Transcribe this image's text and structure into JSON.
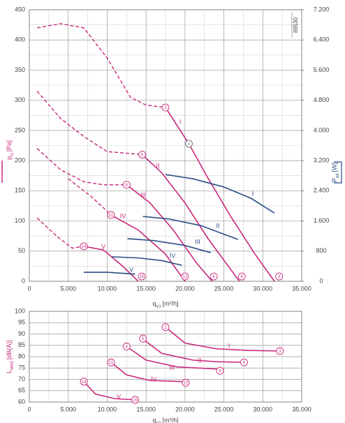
{
  "chart_data": [
    {
      "type": "line",
      "code": "86530",
      "xlabel": {
        "symbol": "q",
        "sub": "V1",
        "unit": "[m³/h]"
      },
      "ylabel": {
        "symbol": "p",
        "sub": "fs",
        "unit": "[Pa]"
      },
      "y2label": {
        "symbol": "P",
        "sub": "ed",
        "unit": "[W]"
      },
      "xlim": [
        0,
        35000
      ],
      "xticks": [
        0,
        {
          "value": 5000,
          "label": "5.000"
        },
        {
          "value": 10000,
          "label": "10.000"
        },
        {
          "value": 15000,
          "label": "15.000"
        },
        {
          "value": 20000,
          "label": "20.000"
        },
        {
          "value": 25000,
          "label": "25.000"
        },
        {
          "value": 30000,
          "label": "30.000"
        },
        {
          "value": 35000,
          "label": "35.000"
        }
      ],
      "xminor": [
        2500,
        7500,
        12500,
        17500,
        22500,
        27500,
        32500
      ],
      "ylim": [
        0,
        450
      ],
      "yticks": [
        0,
        50,
        100,
        150,
        200,
        250,
        300,
        350,
        400,
        450
      ],
      "yminor": [
        25,
        75,
        125,
        175,
        225,
        275,
        325,
        375,
        425
      ],
      "y2lim": [
        0,
        7200
      ],
      "y2ticks": [
        0,
        800,
        {
          "value": 1600,
          "label": "1.600"
        },
        {
          "value": 2400,
          "label": "2.400"
        },
        {
          "value": 3200,
          "label": "3.200"
        },
        {
          "value": 4000,
          "label": "4.000"
        },
        {
          "value": 4800,
          "label": "4.800"
        },
        {
          "value": 5600,
          "label": "5.600"
        },
        {
          "value": 6400,
          "label": "6.400"
        },
        {
          "value": 7200,
          "label": "7.200"
        }
      ],
      "grid": true,
      "series": [
        {
          "name": "I",
          "color": "#c8287c",
          "x": [
            17500,
            20500,
            23000,
            26000,
            29000,
            31500
          ],
          "values": [
            288,
            228,
            170,
            105,
            45,
            0
          ],
          "stall": {
            "x": [
              1000,
              4000,
              7000,
              10000,
              13000,
              15000,
              17500
            ],
            "values": [
              420,
              427,
              420,
              370,
              305,
              292,
              288
            ]
          }
        },
        {
          "name": "II",
          "color": "#c8287c",
          "x": [
            14500,
            17000,
            20000,
            23000,
            27000
          ],
          "values": [
            210,
            180,
            130,
            70,
            0
          ],
          "stall": {
            "x": [
              1000,
              4000,
              7000,
              10000,
              14500
            ],
            "values": [
              315,
              270,
              240,
              215,
              210
            ]
          }
        },
        {
          "name": "III",
          "color": "#c8287c",
          "x": [
            12500,
            15500,
            18500,
            21500,
            23500
          ],
          "values": [
            160,
            130,
            85,
            30,
            0
          ],
          "stall": {
            "x": [
              1000,
              4000,
              7000,
              9500,
              12500
            ],
            "values": [
              220,
              185,
              165,
              160,
              160
            ]
          }
        },
        {
          "name": "IV",
          "color": "#c8287c",
          "x": [
            10500,
            14000,
            17500,
            20000
          ],
          "values": [
            110,
            85,
            45,
            0
          ],
          "stall": {
            "x": [
              5000,
              8000,
              10500
            ],
            "values": [
              170,
              140,
              110
            ]
          }
        },
        {
          "name": "V",
          "color": "#c8287c",
          "x": [
            7000,
            9500,
            12000,
            14000
          ],
          "values": [
            58,
            52,
            25,
            0
          ],
          "stall": {
            "x": [
              1000,
              3500,
              5500,
              7000
            ],
            "values": [
              105,
              75,
              55,
              58
            ]
          }
        },
        {
          "name": "I",
          "color": "#2a4f86",
          "axis": "y2",
          "x": [
            17500,
            21000,
            25000,
            28500,
            31500
          ],
          "values": [
            2830,
            2720,
            2500,
            2200,
            1810
          ]
        },
        {
          "name": "II",
          "color": "#2a4f86",
          "axis": "y2",
          "x": [
            14600,
            18000,
            22000,
            26800
          ],
          "values": [
            1720,
            1650,
            1480,
            1110
          ]
        },
        {
          "name": "III",
          "color": "#2a4f86",
          "axis": "y2",
          "x": [
            12600,
            16000,
            20000,
            23300
          ],
          "values": [
            1130,
            1080,
            950,
            760
          ]
        },
        {
          "name": "IV",
          "color": "#2a4f86",
          "axis": "y2",
          "x": [
            10600,
            14000,
            17000,
            19600
          ],
          "values": [
            650,
            620,
            550,
            425
          ]
        },
        {
          "name": "V",
          "color": "#2a4f86",
          "axis": "y2",
          "x": [
            7000,
            10000,
            13600
          ],
          "values": [
            240,
            240,
            190
          ]
        }
      ],
      "points": [
        {
          "label": "2",
          "x": 17500,
          "y": 288,
          "color": "#c8287c"
        },
        {
          "label": "n",
          "x": 20500,
          "y": 228,
          "color": "#666666"
        },
        {
          "label": "5",
          "x": 14500,
          "y": 210,
          "color": "#c8287c"
        },
        {
          "label": "8",
          "x": 12500,
          "y": 160,
          "color": "#c8287c"
        },
        {
          "label": "11",
          "x": 10500,
          "y": 110,
          "color": "#c8287c"
        },
        {
          "label": "14",
          "x": 7000,
          "y": 58,
          "color": "#c8287c"
        },
        {
          "label": "15",
          "x": 14450,
          "y": 8,
          "color": "#c8287c"
        },
        {
          "label": "12",
          "x": 20000,
          "y": 8,
          "color": "#c8287c"
        },
        {
          "label": "9",
          "x": 23700,
          "y": 8,
          "color": "#c8287c"
        },
        {
          "label": "6",
          "x": 27300,
          "y": 8,
          "color": "#c8287c"
        },
        {
          "label": "3",
          "x": 32100,
          "y": 8,
          "color": "#c8287c"
        }
      ]
    },
    {
      "type": "line",
      "xlabel": {
        "symbol": "q",
        "sub": "V1",
        "unit": "[m³/h]"
      },
      "ylabel": {
        "symbol": "L",
        "sub": "WA5",
        "unit": "[dB(A)]"
      },
      "xlim": [
        0,
        35000
      ],
      "xticks": [
        0,
        {
          "value": 5000,
          "label": "5.000"
        },
        {
          "value": 10000,
          "label": "10.000"
        },
        {
          "value": 15000,
          "label": "15.000"
        },
        {
          "value": 20000,
          "label": "20.000"
        },
        {
          "value": 25000,
          "label": "25.000"
        },
        {
          "value": 30000,
          "label": "30.000"
        },
        {
          "value": 35000,
          "label": "35.000"
        }
      ],
      "xminor": [
        2500,
        7500,
        12500,
        17500,
        22500,
        27500,
        32500
      ],
      "ylim": [
        60,
        100
      ],
      "yticks": [
        60,
        65,
        70,
        75,
        80,
        85,
        90,
        95,
        100
      ],
      "grid": true,
      "series": [
        {
          "name": "I",
          "color": "#c8287c",
          "x": [
            17500,
            20000,
            24000,
            28000,
            32000
          ],
          "values": [
            93,
            86,
            83.5,
            82.8,
            82.5
          ]
        },
        {
          "name": "II",
          "color": "#c8287c",
          "x": [
            14500,
            17000,
            21000,
            24000,
            27500
          ],
          "values": [
            88,
            81.5,
            78.5,
            77.8,
            77.5
          ]
        },
        {
          "name": "III",
          "color": "#c8287c",
          "x": [
            12500,
            15000,
            19000,
            24500
          ],
          "values": [
            84.5,
            78.5,
            75.5,
            74.5
          ]
        },
        {
          "name": "IV",
          "color": "#c8287c",
          "x": [
            10500,
            12500,
            15500,
            20000
          ],
          "values": [
            77.5,
            72,
            69.5,
            69
          ]
        },
        {
          "name": "V",
          "color": "#c8287c",
          "x": [
            7000,
            8500,
            11000,
            13500
          ],
          "values": [
            69,
            63.5,
            61.5,
            61
          ]
        }
      ],
      "points": [
        {
          "label": "2",
          "x": 17500,
          "y": 93,
          "color": "#c8287c"
        },
        {
          "label": "3",
          "x": 32200,
          "y": 82.5,
          "color": "#c8287c"
        },
        {
          "label": "5",
          "x": 14600,
          "y": 88,
          "color": "#c8287c"
        },
        {
          "label": "6",
          "x": 27600,
          "y": 77.5,
          "color": "#c8287c"
        },
        {
          "label": "8",
          "x": 12500,
          "y": 84.5,
          "color": "#c8287c"
        },
        {
          "label": "9",
          "x": 24500,
          "y": 73.8,
          "color": "#c8287c"
        },
        {
          "label": "11",
          "x": 10500,
          "y": 77.5,
          "color": "#c8287c"
        },
        {
          "label": "12",
          "x": 20100,
          "y": 68.5,
          "color": "#c8287c"
        },
        {
          "label": "14",
          "x": 7000,
          "y": 69,
          "color": "#c8287c"
        },
        {
          "label": "15",
          "x": 13600,
          "y": 61,
          "color": "#c8287c"
        }
      ]
    }
  ]
}
